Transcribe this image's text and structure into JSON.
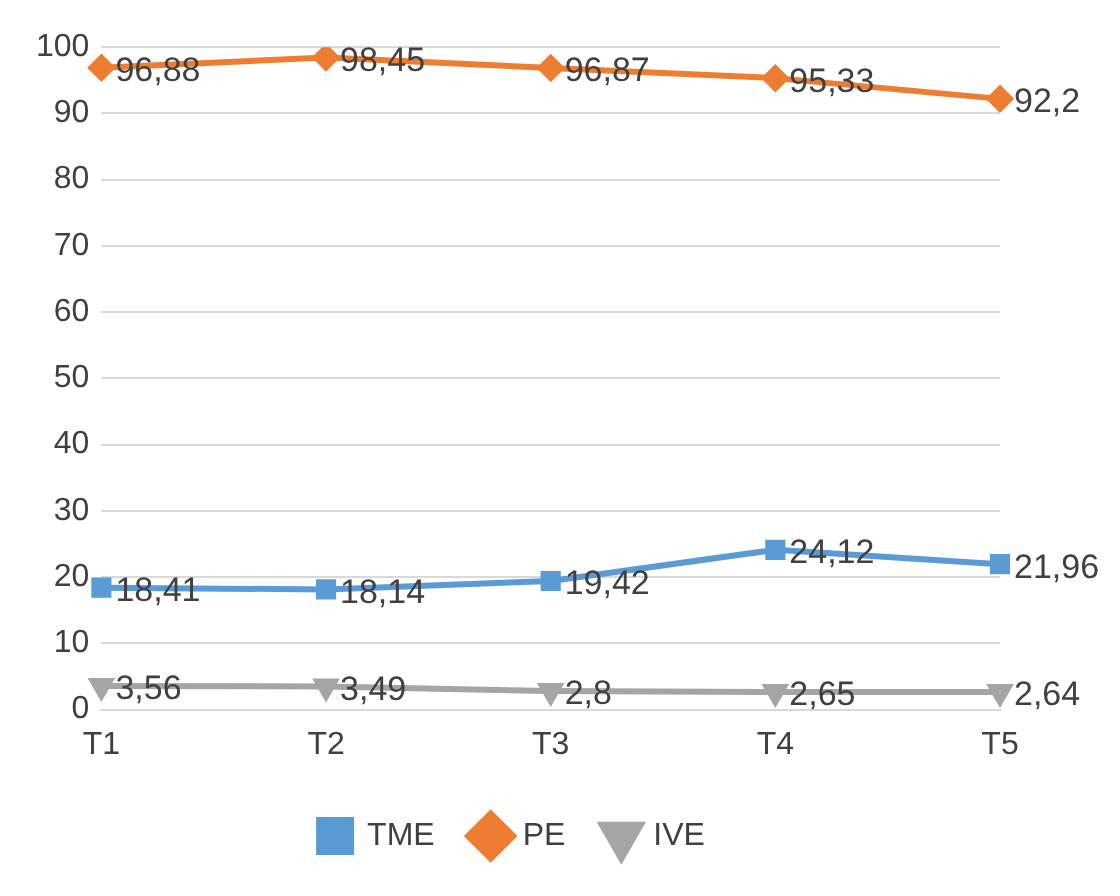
{
  "chart_data": {
    "type": "line",
    "categories": [
      "T1",
      "T2",
      "T3",
      "T4",
      "T5"
    ],
    "series": [
      {
        "name": "TME",
        "color": "#5b9bd5",
        "marker": "square",
        "values": [
          18.41,
          18.14,
          19.42,
          24.12,
          21.96
        ],
        "value_labels": [
          "18,41",
          "18,14",
          "19,42",
          "24,12",
          "21,96"
        ]
      },
      {
        "name": "PE",
        "color": "#ed7d31",
        "marker": "diamond",
        "values": [
          96.88,
          98.45,
          96.87,
          95.33,
          92.2
        ],
        "value_labels": [
          "96,88",
          "98,45",
          "96,87",
          "95,33",
          "92,2"
        ]
      },
      {
        "name": "IVE",
        "color": "#a5a5a5",
        "marker": "triangle",
        "values": [
          3.56,
          3.49,
          2.8,
          2.65,
          2.64
        ],
        "value_labels": [
          "3,56",
          "3,49",
          "2,8",
          "2,65",
          "2,64"
        ]
      }
    ],
    "ylim": [
      0,
      100
    ],
    "yticks": [
      0,
      10,
      20,
      30,
      40,
      50,
      60,
      70,
      80,
      90,
      100
    ],
    "grid": "y",
    "legend": "bottom"
  }
}
